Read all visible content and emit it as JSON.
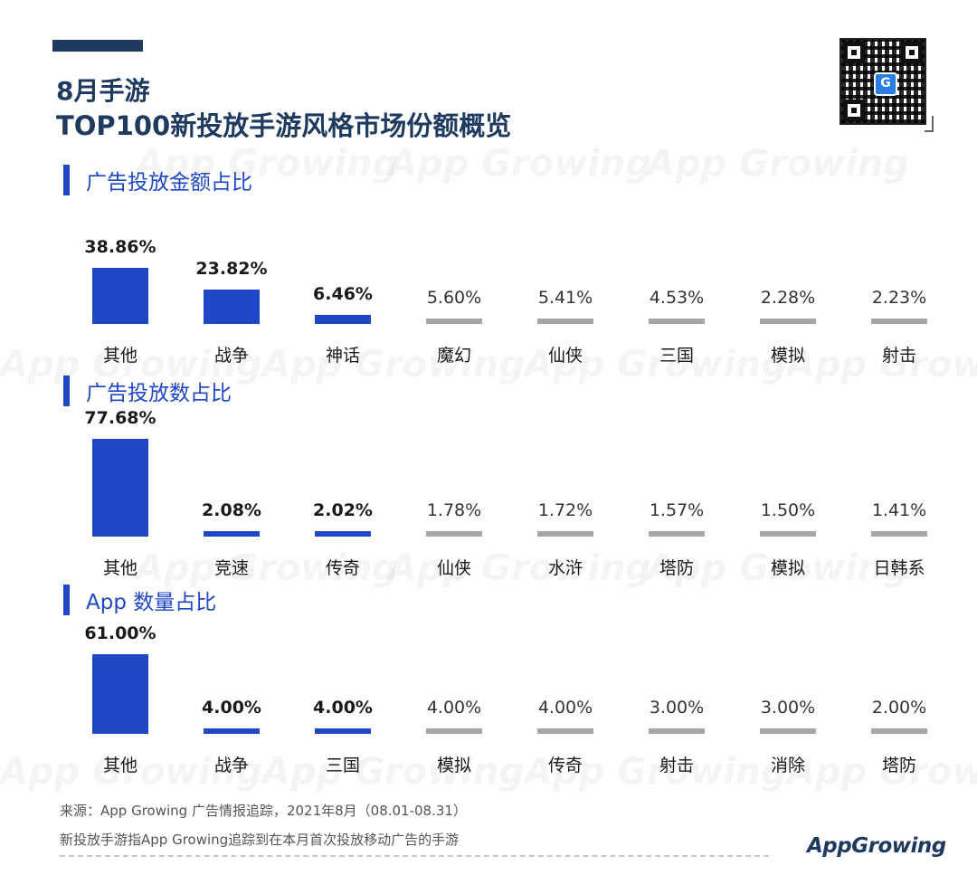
{
  "header": {
    "title_line1": "8月手游",
    "title_line2": "TOP100新投放手游风格市场份额概览"
  },
  "watermark_text": "App Growing",
  "chart_data": [
    {
      "type": "bar",
      "title": "广告投放金额占比",
      "categories": [
        "其他",
        "战争",
        "神话",
        "魔幻",
        "仙侠",
        "三国",
        "模拟",
        "射击"
      ],
      "values": [
        38.86,
        23.82,
        6.46,
        5.6,
        5.41,
        4.53,
        2.28,
        2.23
      ],
      "labels": [
        "38.86%",
        "23.82%",
        "6.46%",
        "5.60%",
        "5.41%",
        "4.53%",
        "2.28%",
        "2.23%"
      ],
      "highlight_count": 3,
      "unit": "%"
    },
    {
      "type": "bar",
      "title": "广告投放数占比",
      "categories": [
        "其他",
        "竞速",
        "传奇",
        "仙侠",
        "水浒",
        "塔防",
        "模拟",
        "日韩系"
      ],
      "values": [
        77.68,
        2.08,
        2.02,
        1.78,
        1.72,
        1.57,
        1.5,
        1.41
      ],
      "labels": [
        "77.68%",
        "2.08%",
        "2.02%",
        "1.78%",
        "1.72%",
        "1.57%",
        "1.50%",
        "1.41%"
      ],
      "highlight_count": 3,
      "unit": "%"
    },
    {
      "type": "bar",
      "title": "App 数量占比",
      "categories": [
        "其他",
        "战争",
        "三国",
        "模拟",
        "传奇",
        "射击",
        "消除",
        "塔防"
      ],
      "values": [
        61.0,
        4.0,
        4.0,
        4.0,
        4.0,
        3.0,
        3.0,
        2.0
      ],
      "labels": [
        "61.00%",
        "4.00%",
        "4.00%",
        "4.00%",
        "4.00%",
        "3.00%",
        "3.00%",
        "2.00%"
      ],
      "highlight_count": 3,
      "unit": "%"
    }
  ],
  "colors": {
    "highlight": "#1f47c6",
    "muted": "#a6a6a6",
    "title": "#1e3a5f"
  },
  "footer": {
    "source": "来源：App Growing 广告情报追踪，2021年8月（08.01-08.31）",
    "note": "新投放手游指App Growing追踪到在本月首次投放移动广告的手游",
    "brand": "AppGrowing"
  }
}
